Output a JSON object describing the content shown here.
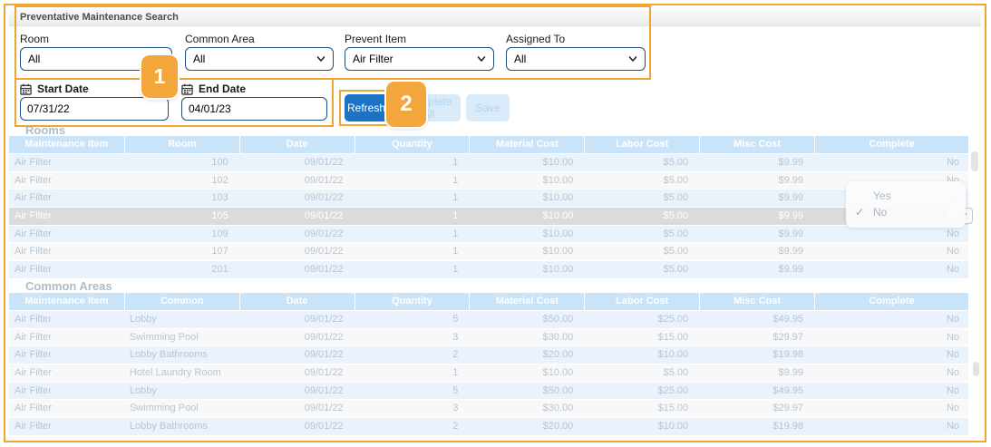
{
  "panel": {
    "header_title": "Preventative Maintenance Search"
  },
  "filters": {
    "room": {
      "label": "Room",
      "value": "All"
    },
    "common_area": {
      "label": "Common Area",
      "value": "All"
    },
    "prevent_item": {
      "label": "Prevent Item",
      "value": "Air Filter"
    },
    "assigned_to": {
      "label": "Assigned To",
      "value": "All"
    }
  },
  "dates": {
    "start": {
      "label": "Start Date",
      "value": "07/31/22"
    },
    "end": {
      "label": "End Date",
      "value": "04/01/23"
    }
  },
  "actions": {
    "refresh": "Refresh",
    "complete_all": "Complete All",
    "save": "Save"
  },
  "callouts": {
    "badge1": "1",
    "badge2": "2"
  },
  "rooms_section": {
    "title": "Rooms",
    "columns": [
      "Maintenance Item",
      "Room",
      "Date",
      "Quantity",
      "Material Cost",
      "Labor Cost",
      "Misc Cost",
      "Complete"
    ],
    "selected_row_index": 3,
    "rows": [
      [
        "Air Filter",
        "100",
        "09/01/22",
        "1",
        "$10.00",
        "$5.00",
        "$9.99",
        "No"
      ],
      [
        "Air Filter",
        "102",
        "09/01/22",
        "1",
        "$10.00",
        "$5.00",
        "$9.99",
        "No"
      ],
      [
        "Air Filter",
        "103",
        "09/01/22",
        "1",
        "$10.00",
        "$5.00",
        "$9.99",
        "No"
      ],
      [
        "Air Filter",
        "105",
        "09/01/22",
        "1",
        "$10.00",
        "$5.00",
        "$9.99",
        "No"
      ],
      [
        "Air Filter",
        "109",
        "09/01/22",
        "1",
        "$10.00",
        "$5.00",
        "$9.99",
        "No"
      ],
      [
        "Air Filter",
        "107",
        "09/01/22",
        "1",
        "$10.00",
        "$5.00",
        "$9.99",
        "No"
      ],
      [
        "Air Filter",
        "201",
        "09/01/22",
        "1",
        "$10.00",
        "$5.00",
        "$9.99",
        "No"
      ]
    ]
  },
  "common_section": {
    "title": "Common Areas",
    "columns": [
      "Maintenance Item",
      "Common",
      "Date",
      "Quantity",
      "Material Cost",
      "Labor Cost",
      "Misc Cost",
      "Complete"
    ],
    "selected_row_index": -1,
    "rows": [
      [
        "Air Filter",
        "Lobby",
        "09/01/22",
        "5",
        "$50.00",
        "$25.00",
        "$49.95",
        "No"
      ],
      [
        "Air Filter",
        "Swimming Pool",
        "09/01/22",
        "3",
        "$30.00",
        "$15.00",
        "$29.97",
        "No"
      ],
      [
        "Air Filter",
        "Lobby Bathrooms",
        "09/01/22",
        "2",
        "$20.00",
        "$10.00",
        "$19.98",
        "No"
      ],
      [
        "Air Filter",
        "Hotel Laundry Room",
        "09/01/22",
        "1",
        "$10.00",
        "$5.00",
        "$9.99",
        "No"
      ],
      [
        "Air Filter",
        "Lobby",
        "09/01/22",
        "5",
        "$50.00",
        "$25.00",
        "$49.95",
        "No"
      ],
      [
        "Air Filter",
        "Swimming Pool",
        "09/01/22",
        "3",
        "$30.00",
        "$15.00",
        "$29.97",
        "No"
      ],
      [
        "Air Filter",
        "Lobby Bathrooms",
        "09/01/22",
        "2",
        "$20.00",
        "$10.00",
        "$19.98",
        "No"
      ]
    ]
  },
  "complete_dropdown": {
    "options": [
      {
        "label": "Yes",
        "checked": false
      },
      {
        "label": "No",
        "checked": true
      }
    ]
  },
  "colors": {
    "accent_orange": "#F0A432",
    "refresh_blue": "#1B73C7",
    "table_header_blue": "#C9E4F8",
    "row_alt_blue": "#EAF3FB",
    "selected_row_gray": "#DBDBDB",
    "faded_text": "#B7C5D1"
  }
}
